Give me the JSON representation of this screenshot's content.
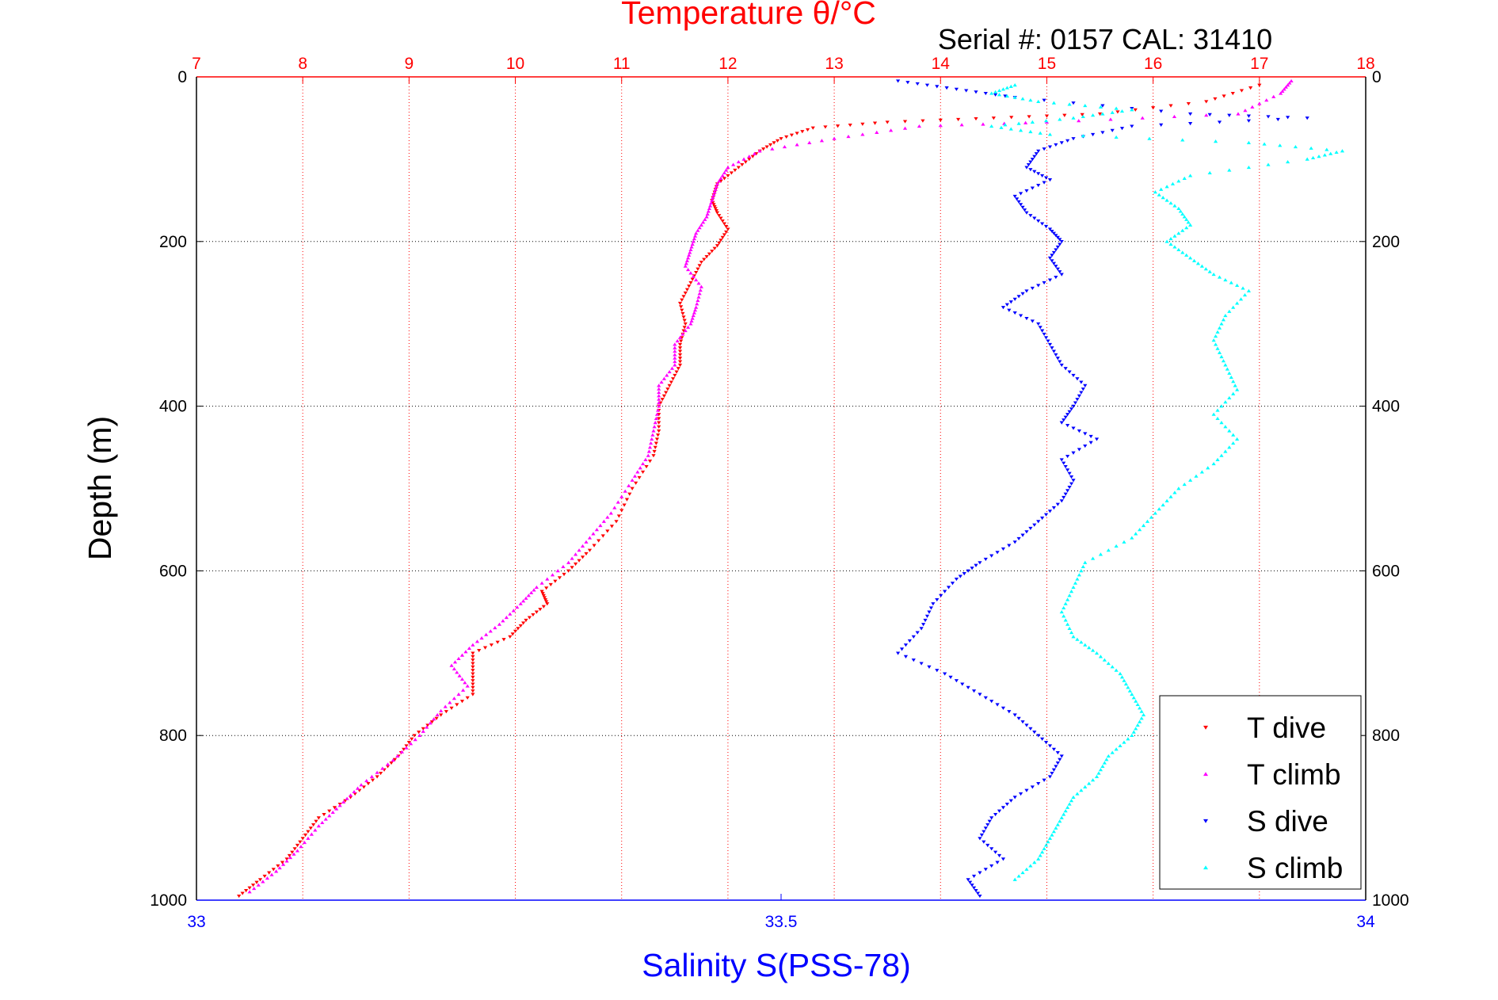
{
  "chart_data": {
    "type": "scatter",
    "top_axis": {
      "label": "Temperature θ/°C",
      "ticks": [
        7,
        8,
        9,
        10,
        11,
        12,
        13,
        14,
        15,
        16,
        17,
        18
      ],
      "range": [
        7,
        18
      ],
      "color": "#ff0000"
    },
    "bottom_axis": {
      "label": "Salinity S(PSS-78)",
      "ticks": [
        33,
        33.5,
        34
      ],
      "range": [
        33,
        34
      ],
      "color": "#0000ff"
    },
    "y_axis": {
      "label": "Depth (m)",
      "ticks": [
        0,
        200,
        400,
        600,
        800,
        1000
      ],
      "range": [
        0,
        1000
      ],
      "reversed": true
    },
    "annotation": "Serial #: 0157  CAL: 31410",
    "grid": true,
    "legend_position": "bottom-right",
    "series": [
      {
        "name": "T dive",
        "axis": "temperature",
        "color": "#ff0000",
        "marker": "triangle-down",
        "points": [
          [
            17.0,
            10
          ],
          [
            16.5,
            30
          ],
          [
            15.5,
            45
          ],
          [
            14.5,
            50
          ],
          [
            13.5,
            55
          ],
          [
            12.8,
            62
          ],
          [
            12.5,
            75
          ],
          [
            12.3,
            90
          ],
          [
            12.1,
            110
          ],
          [
            11.9,
            130
          ],
          [
            11.85,
            150
          ],
          [
            11.9,
            165
          ],
          [
            12.0,
            185
          ],
          [
            11.9,
            205
          ],
          [
            11.75,
            225
          ],
          [
            11.65,
            250
          ],
          [
            11.55,
            275
          ],
          [
            11.6,
            300
          ],
          [
            11.55,
            325
          ],
          [
            11.55,
            350
          ],
          [
            11.45,
            375
          ],
          [
            11.35,
            400
          ],
          [
            11.35,
            430
          ],
          [
            11.3,
            460
          ],
          [
            11.1,
            500
          ],
          [
            10.95,
            540
          ],
          [
            10.7,
            575
          ],
          [
            10.5,
            600
          ],
          [
            10.25,
            625
          ],
          [
            10.3,
            640
          ],
          [
            10.1,
            660
          ],
          [
            9.95,
            680
          ],
          [
            9.6,
            700
          ],
          [
            9.6,
            725
          ],
          [
            9.6,
            750
          ],
          [
            9.3,
            775
          ],
          [
            9.05,
            800
          ],
          [
            8.9,
            825
          ],
          [
            8.7,
            850
          ],
          [
            8.45,
            875
          ],
          [
            8.15,
            900
          ],
          [
            8.0,
            925
          ],
          [
            7.85,
            950
          ],
          [
            7.6,
            975
          ],
          [
            7.4,
            995
          ]
        ]
      },
      {
        "name": "T climb",
        "axis": "temperature",
        "color": "#ff00ff",
        "marker": "triangle-up",
        "points": [
          [
            17.3,
            5
          ],
          [
            17.2,
            20
          ],
          [
            16.8,
            45
          ],
          [
            15.0,
            55
          ],
          [
            13.8,
            60
          ],
          [
            13.0,
            75
          ],
          [
            12.3,
            90
          ],
          [
            12.0,
            110
          ],
          [
            11.9,
            130
          ],
          [
            11.85,
            150
          ],
          [
            11.8,
            170
          ],
          [
            11.7,
            190
          ],
          [
            11.65,
            210
          ],
          [
            11.6,
            230
          ],
          [
            11.75,
            255
          ],
          [
            11.7,
            280
          ],
          [
            11.65,
            300
          ],
          [
            11.5,
            325
          ],
          [
            11.5,
            350
          ],
          [
            11.35,
            375
          ],
          [
            11.35,
            400
          ],
          [
            11.3,
            430
          ],
          [
            11.25,
            460
          ],
          [
            11.1,
            490
          ],
          [
            10.9,
            530
          ],
          [
            10.7,
            560
          ],
          [
            10.5,
            590
          ],
          [
            10.2,
            620
          ],
          [
            10.05,
            640
          ],
          [
            9.85,
            665
          ],
          [
            9.6,
            690
          ],
          [
            9.4,
            715
          ],
          [
            9.55,
            740
          ],
          [
            9.3,
            770
          ],
          [
            9.1,
            800
          ],
          [
            8.85,
            830
          ],
          [
            8.55,
            860
          ],
          [
            8.35,
            885
          ],
          [
            8.15,
            910
          ],
          [
            7.95,
            940
          ],
          [
            7.75,
            965
          ],
          [
            7.5,
            990
          ]
        ]
      },
      {
        "name": "S dive",
        "axis": "salinity",
        "color": "#0000ff",
        "marker": "triangle-down",
        "points": [
          [
            33.6,
            5
          ],
          [
            33.65,
            15
          ],
          [
            33.7,
            25
          ],
          [
            33.85,
            45
          ],
          [
            33.95,
            50
          ],
          [
            33.8,
            60
          ],
          [
            33.75,
            75
          ],
          [
            33.72,
            90
          ],
          [
            33.71,
            110
          ],
          [
            33.73,
            125
          ],
          [
            33.7,
            145
          ],
          [
            33.71,
            165
          ],
          [
            33.73,
            185
          ],
          [
            33.74,
            200
          ],
          [
            33.73,
            220
          ],
          [
            33.74,
            240
          ],
          [
            33.71,
            260
          ],
          [
            33.69,
            280
          ],
          [
            33.72,
            300
          ],
          [
            33.73,
            325
          ],
          [
            33.74,
            350
          ],
          [
            33.76,
            375
          ],
          [
            33.75,
            400
          ],
          [
            33.74,
            420
          ],
          [
            33.77,
            440
          ],
          [
            33.74,
            465
          ],
          [
            33.75,
            490
          ],
          [
            33.74,
            515
          ],
          [
            33.72,
            540
          ],
          [
            33.7,
            565
          ],
          [
            33.67,
            590
          ],
          [
            33.65,
            610
          ],
          [
            33.63,
            640
          ],
          [
            33.62,
            670
          ],
          [
            33.6,
            700
          ],
          [
            33.64,
            725
          ],
          [
            33.67,
            750
          ],
          [
            33.7,
            775
          ],
          [
            33.72,
            800
          ],
          [
            33.74,
            825
          ],
          [
            33.73,
            850
          ],
          [
            33.7,
            875
          ],
          [
            33.68,
            900
          ],
          [
            33.67,
            925
          ],
          [
            33.69,
            950
          ],
          [
            33.66,
            975
          ],
          [
            33.67,
            995
          ]
        ]
      },
      {
        "name": "S climb",
        "axis": "salinity",
        "color": "#00ffff",
        "marker": "triangle-up",
        "points": [
          [
            33.7,
            10
          ],
          [
            33.68,
            20
          ],
          [
            33.72,
            30
          ],
          [
            33.8,
            40
          ],
          [
            33.75,
            50
          ],
          [
            33.68,
            60
          ],
          [
            33.73,
            70
          ],
          [
            33.9,
            80
          ],
          [
            33.98,
            90
          ],
          [
            33.95,
            100
          ],
          [
            33.85,
            120
          ],
          [
            33.82,
            140
          ],
          [
            33.84,
            160
          ],
          [
            33.85,
            180
          ],
          [
            33.83,
            200
          ],
          [
            33.85,
            220
          ],
          [
            33.87,
            240
          ],
          [
            33.9,
            260
          ],
          [
            33.88,
            290
          ],
          [
            33.87,
            320
          ],
          [
            33.88,
            350
          ],
          [
            33.89,
            380
          ],
          [
            33.87,
            410
          ],
          [
            33.89,
            440
          ],
          [
            33.87,
            470
          ],
          [
            33.84,
            500
          ],
          [
            33.82,
            530
          ],
          [
            33.8,
            560
          ],
          [
            33.76,
            590
          ],
          [
            33.75,
            620
          ],
          [
            33.74,
            650
          ],
          [
            33.75,
            680
          ],
          [
            33.77,
            700
          ],
          [
            33.79,
            725
          ],
          [
            33.8,
            750
          ],
          [
            33.81,
            775
          ],
          [
            33.8,
            800
          ],
          [
            33.78,
            825
          ],
          [
            33.77,
            850
          ],
          [
            33.75,
            875
          ],
          [
            33.74,
            900
          ],
          [
            33.73,
            925
          ],
          [
            33.72,
            950
          ],
          [
            33.7,
            975
          ]
        ]
      }
    ]
  }
}
